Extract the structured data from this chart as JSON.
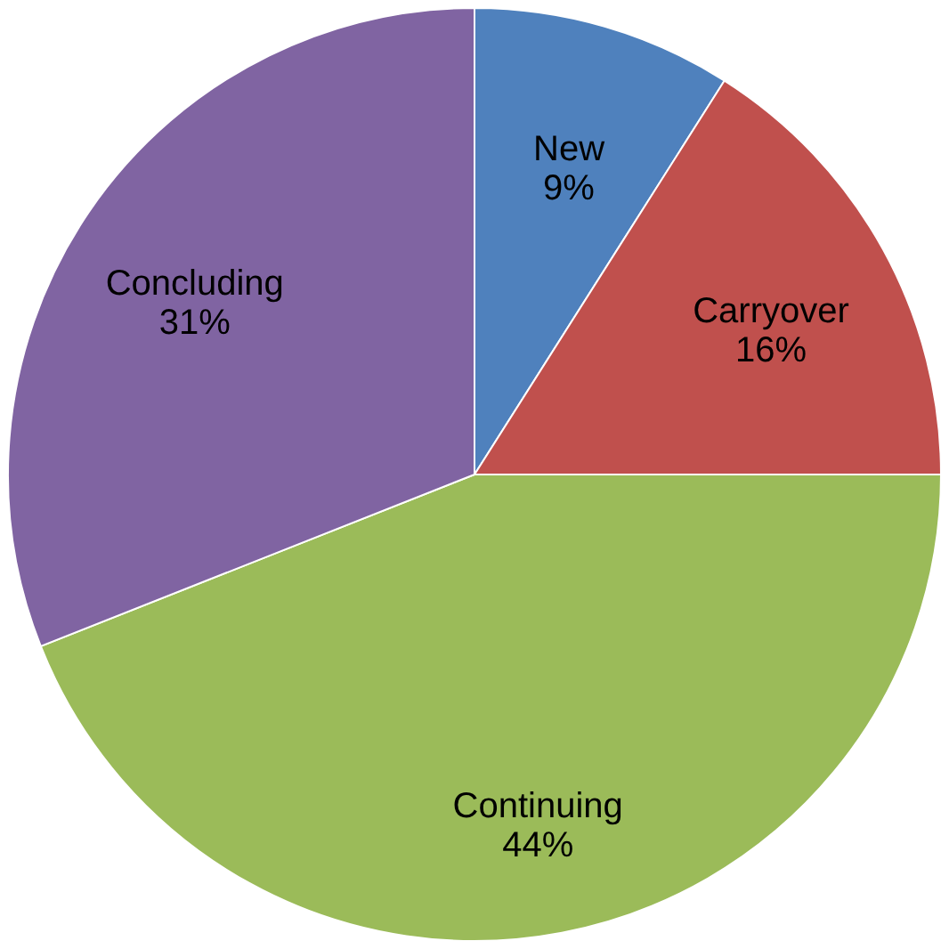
{
  "chart_data": {
    "type": "pie",
    "categories": [
      "New",
      "Carryover",
      "Continuing",
      "Concluding"
    ],
    "values": [
      9,
      16,
      44,
      31
    ],
    "colors": [
      "#4f81bd",
      "#c0504d",
      "#9bbb59",
      "#8064a2"
    ],
    "value_labels": [
      "9%",
      "16%",
      "44%",
      "31%"
    ],
    "legend": false
  }
}
